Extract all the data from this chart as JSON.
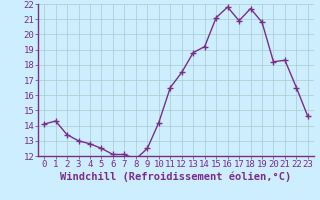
{
  "x": [
    0,
    1,
    2,
    3,
    4,
    5,
    6,
    7,
    8,
    9,
    10,
    11,
    12,
    13,
    14,
    15,
    16,
    17,
    18,
    19,
    20,
    21,
    22,
    23
  ],
  "y": [
    14.1,
    14.3,
    13.4,
    13.0,
    12.8,
    12.5,
    12.1,
    12.1,
    11.8,
    12.5,
    14.2,
    16.5,
    17.5,
    18.8,
    19.2,
    21.1,
    21.8,
    20.9,
    21.7,
    20.8,
    18.2,
    18.3,
    16.5,
    14.6
  ],
  "line_color": "#7b2d8b",
  "marker": "+",
  "marker_size": 4,
  "marker_lw": 1.0,
  "xlabel": "Windchill (Refroidissement éolien,°C)",
  "xlabel_fontsize": 7.5,
  "ylim": [
    12,
    22
  ],
  "yticks": [
    12,
    13,
    14,
    15,
    16,
    17,
    18,
    19,
    20,
    21,
    22
  ],
  "xticks": [
    0,
    1,
    2,
    3,
    4,
    5,
    6,
    7,
    8,
    9,
    10,
    11,
    12,
    13,
    14,
    15,
    16,
    17,
    18,
    19,
    20,
    21,
    22,
    23
  ],
  "bg_color": "#cceeff",
  "grid_color": "#aacccc",
  "spine_color": "#7b2d8b",
  "tick_color": "#7b2d8b",
  "tick_fontsize": 6.5,
  "linewidth": 1.0
}
